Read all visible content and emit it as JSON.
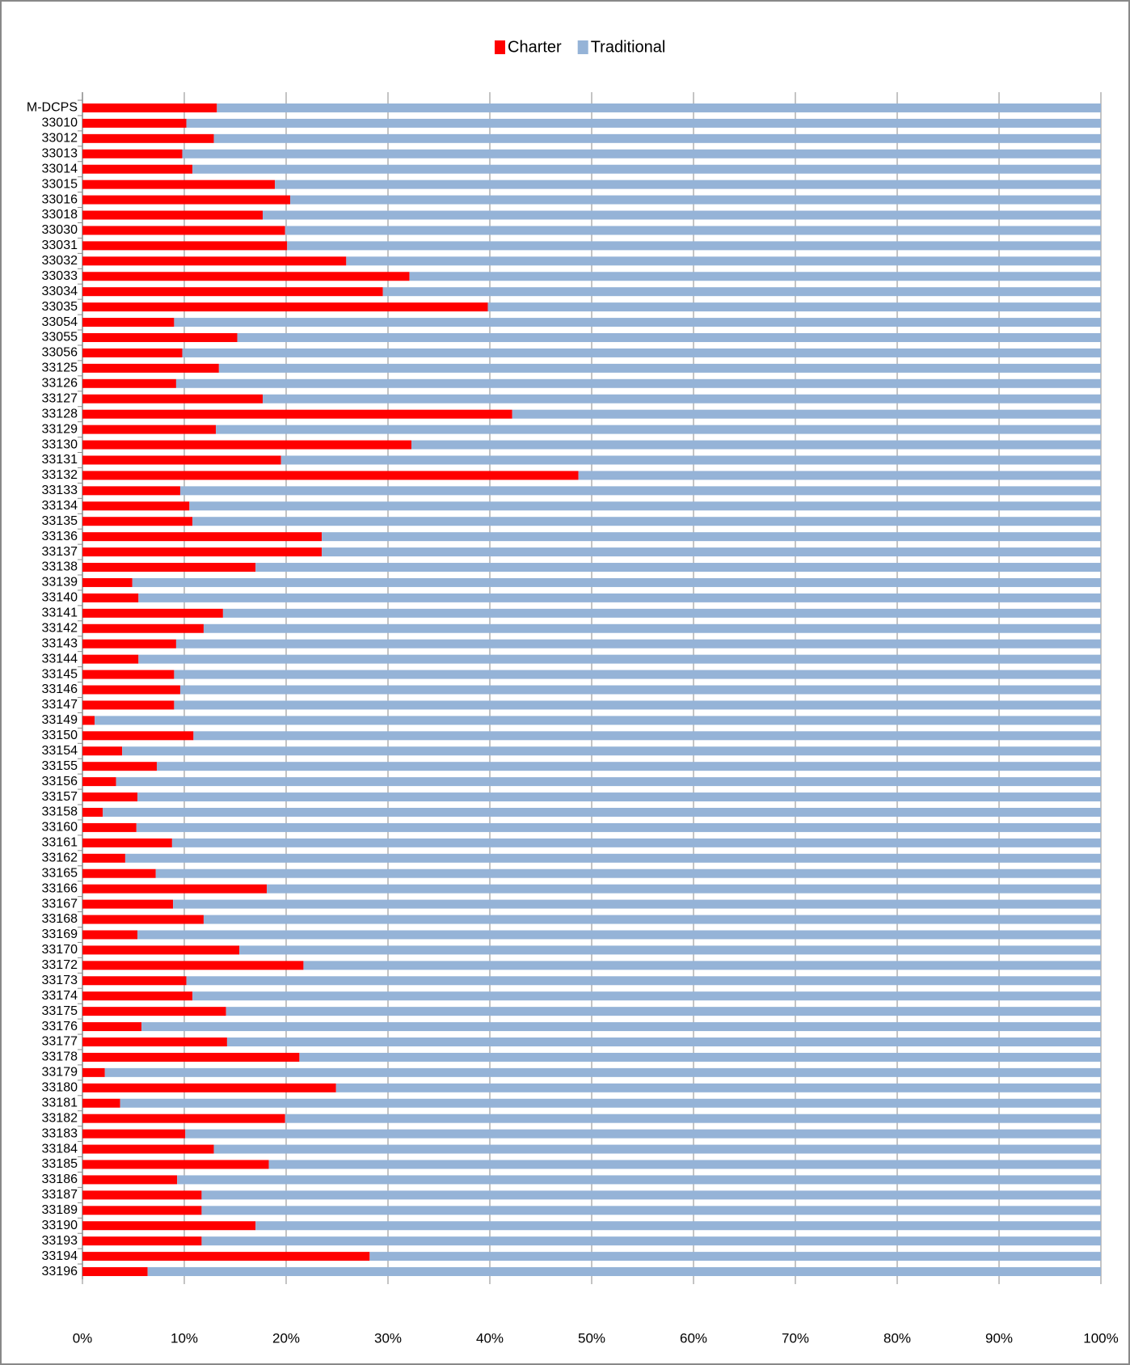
{
  "chart_data": {
    "type": "stacked_bar_horizontal_percent",
    "categories": [
      "M-DCPS",
      "33010",
      "33012",
      "33013",
      "33014",
      "33015",
      "33016",
      "33018",
      "33030",
      "33031",
      "33032",
      "33033",
      "33034",
      "33035",
      "33054",
      "33055",
      "33056",
      "33125",
      "33126",
      "33127",
      "33128",
      "33129",
      "33130",
      "33131",
      "33132",
      "33133",
      "33134",
      "33135",
      "33136",
      "33137",
      "33138",
      "33139",
      "33140",
      "33141",
      "33142",
      "33143",
      "33144",
      "33145",
      "33146",
      "33147",
      "33149",
      "33150",
      "33154",
      "33155",
      "33156",
      "33157",
      "33158",
      "33160",
      "33161",
      "33162",
      "33165",
      "33166",
      "33167",
      "33168",
      "33169",
      "33170",
      "33172",
      "33173",
      "33174",
      "33175",
      "33176",
      "33177",
      "33178",
      "33179",
      "33180",
      "33181",
      "33182",
      "33183",
      "33184",
      "33185",
      "33186",
      "33187",
      "33189",
      "33190",
      "33193",
      "33194",
      "33196"
    ],
    "series": [
      {
        "name": "Charter",
        "color": "#ff0000",
        "values": [
          13.2,
          10.2,
          12.9,
          9.8,
          10.8,
          18.9,
          20.4,
          17.7,
          19.9,
          20.1,
          25.9,
          32.1,
          29.5,
          39.8,
          9.0,
          15.2,
          9.8,
          13.4,
          9.2,
          17.7,
          42.2,
          13.1,
          32.3,
          19.5,
          48.7,
          9.6,
          10.5,
          10.8,
          23.5,
          23.5,
          17.0,
          4.9,
          5.5,
          13.8,
          11.9,
          9.2,
          5.5,
          9.0,
          9.6,
          9.0,
          1.2,
          10.9,
          3.9,
          7.3,
          3.3,
          5.4,
          2.0,
          5.3,
          8.8,
          4.2,
          7.2,
          18.1,
          8.9,
          11.9,
          5.4,
          15.4,
          21.7,
          10.2,
          10.8,
          14.1,
          5.8,
          14.2,
          21.3,
          2.2,
          24.9,
          3.7,
          19.9,
          10.1,
          12.9,
          18.3,
          9.3,
          11.7,
          11.7,
          17.0,
          11.7,
          28.2,
          6.4
        ]
      },
      {
        "name": "Traditional",
        "color": "#95b3d7",
        "values": [
          86.8,
          89.8,
          87.1,
          90.2,
          89.2,
          81.1,
          79.6,
          82.3,
          80.1,
          79.9,
          74.1,
          67.9,
          70.5,
          60.2,
          91.0,
          84.8,
          90.2,
          86.6,
          90.8,
          82.3,
          57.8,
          86.9,
          67.7,
          80.5,
          51.3,
          90.4,
          89.5,
          89.2,
          76.5,
          76.5,
          83.0,
          95.1,
          94.5,
          86.2,
          88.1,
          90.8,
          94.5,
          91.0,
          90.4,
          91.0,
          98.8,
          89.1,
          96.1,
          92.7,
          96.7,
          94.6,
          98.0,
          94.7,
          91.2,
          95.8,
          92.8,
          81.9,
          91.1,
          88.1,
          94.6,
          84.6,
          78.3,
          89.8,
          89.2,
          85.9,
          94.2,
          85.8,
          78.7,
          97.8,
          75.1,
          96.3,
          80.1,
          89.9,
          87.1,
          81.7,
          90.7,
          88.3,
          88.3,
          83.0,
          88.3,
          71.8,
          93.6
        ]
      }
    ],
    "xlim": [
      0,
      100
    ],
    "xticks": [
      {
        "value": 0,
        "label": "0%"
      },
      {
        "value": 10,
        "label": "10%"
      },
      {
        "value": 20,
        "label": "20%"
      },
      {
        "value": 30,
        "label": "30%"
      },
      {
        "value": 40,
        "label": "40%"
      },
      {
        "value": 50,
        "label": "50%"
      },
      {
        "value": 60,
        "label": "60%"
      },
      {
        "value": 70,
        "label": "70%"
      },
      {
        "value": 80,
        "label": "80%"
      },
      {
        "value": 90,
        "label": "90%"
      },
      {
        "value": 100,
        "label": "100%"
      }
    ],
    "grid": true,
    "legend": "top"
  }
}
